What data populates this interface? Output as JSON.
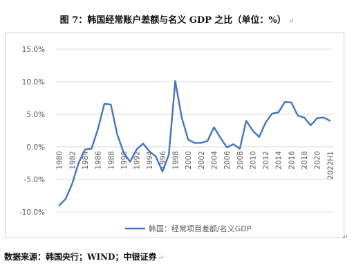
{
  "title": "图 7：韩国经常账户差额与名义 GDP 之比（单位：%）",
  "title_para_mark": "↵",
  "source": "数据来源：韩国央行；WIND；中银证券",
  "source_para_mark": "↵",
  "corner_mark": "↵",
  "colors": {
    "line": "#4472c4",
    "grid": "#d9d9d9",
    "axis_text": "#595959",
    "zero_line": "#d9d9d9"
  },
  "chart_data": {
    "type": "line",
    "title": "",
    "xlabel": "",
    "ylabel": "",
    "ylim": [
      -10,
      15
    ],
    "yticks": [
      -10,
      -5,
      0,
      5,
      10,
      15
    ],
    "ytick_labels": [
      "-10.0%",
      "-5.0%",
      "0.0%",
      "5.0%",
      "10.0%",
      "15.0%"
    ],
    "grid": true,
    "legend_position": "bottom",
    "x_tick_labels": [
      "1980",
      "1982",
      "1984",
      "1986",
      "1988",
      "1990",
      "1992",
      "1994",
      "1996",
      "1998",
      "2000",
      "2002",
      "2004",
      "2006",
      "2008",
      "2010",
      "2012",
      "2014",
      "2016",
      "2018",
      "2020",
      "2022H1"
    ],
    "categories": [
      "1980",
      "1981",
      "1982",
      "1983",
      "1984",
      "1985",
      "1986",
      "1987",
      "1988",
      "1989",
      "1990",
      "1991",
      "1992",
      "1993",
      "1994",
      "1995",
      "1996",
      "1997",
      "1998",
      "1999",
      "2000",
      "2001",
      "2002",
      "2003",
      "2004",
      "2005",
      "2006",
      "2007",
      "2008",
      "2009",
      "2010",
      "2011",
      "2012",
      "2013",
      "2014",
      "2015",
      "2016",
      "2017",
      "2018",
      "2019",
      "2020",
      "2021",
      "2022H1"
    ],
    "series": [
      {
        "name": "韩国：经常项目差额/名义GDP",
        "color": "#4472c4",
        "values": [
          -9.0,
          -8.0,
          -5.7,
          -2.5,
          -0.4,
          -0.3,
          2.7,
          6.6,
          6.5,
          1.9,
          -0.9,
          -2.3,
          -0.4,
          0.5,
          -0.7,
          -1.5,
          -3.8,
          -1.2,
          10.1,
          4.5,
          1.1,
          0.6,
          0.6,
          0.9,
          3.0,
          1.4,
          -0.1,
          0.4,
          -0.3,
          4.0,
          2.5,
          1.5,
          3.7,
          5.1,
          5.3,
          6.9,
          6.8,
          4.8,
          4.5,
          3.3,
          4.4,
          4.5,
          4.0
        ]
      }
    ]
  }
}
